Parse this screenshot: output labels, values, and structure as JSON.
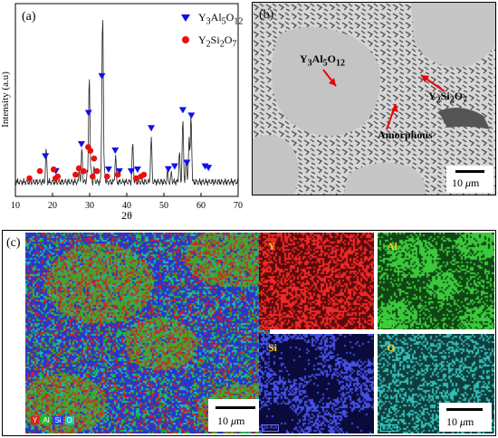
{
  "panel_a": {
    "label": "(a)",
    "legend": [
      {
        "name_html": "Y<sub>3</sub>Al<sub>5</sub>O<sub>12</sub>",
        "marker": "triangle",
        "color": "#1010ee"
      },
      {
        "name_html": "Y<sub>2</sub>Si<sub>2</sub>O<sub>7</sub>",
        "marker": "circle",
        "color": "#e81010"
      }
    ],
    "xlabel": "2θ",
    "ylabel": "Intensity (a.u)",
    "xticks": [
      "10",
      "20",
      "30",
      "40",
      "50",
      "60",
      "70"
    ]
  },
  "chart_data": {
    "type": "line",
    "title": "",
    "xlabel": "2θ",
    "ylabel": "Intensity (a.u)",
    "xlim": [
      10,
      70
    ],
    "ylim": [
      0,
      100
    ],
    "grid": false,
    "legend_position": "top-right",
    "series": [
      {
        "name": "",
        "x": [
          10,
          12,
          13.6,
          15,
          16.6,
          18,
          18.3,
          19,
          20.4,
          21,
          22,
          24,
          26,
          27.2,
          27.9,
          28.5,
          29.4,
          29.9,
          30.4,
          31.2,
          32,
          33.2,
          33.5,
          34,
          35,
          36.2,
          37,
          38,
          39,
          41,
          41.6,
          43,
          44,
          46,
          46.6,
          48,
          50,
          51,
          52,
          53,
          54.2,
          55.1,
          56,
          56.8,
          57.3,
          58,
          60,
          61,
          62,
          65,
          70
        ],
        "values": [
          4,
          4,
          6,
          5,
          8,
          6,
          24,
          6,
          9,
          7,
          5,
          5,
          7,
          12,
          24,
          9,
          12,
          64,
          13,
          14,
          9,
          18,
          98,
          12,
          8,
          9,
          20,
          6,
          7,
          10,
          27,
          8,
          7,
          8,
          30,
          8,
          7,
          12,
          11,
          10,
          22,
          40,
          18,
          30,
          42,
          8,
          6,
          10,
          8,
          5,
          4
        ]
      }
    ],
    "markers": {
      "Y3Al5O12_2theta": [
        18.1,
        20.9,
        27.8,
        29.7,
        33.3,
        35.1,
        36.9,
        38.0,
        41.2,
        42.9,
        46.6,
        51.2,
        52.9,
        55.1,
        56.2,
        57.4,
        61.1,
        62.0
      ],
      "Y2Si2O7_2theta": [
        13.8,
        16.6,
        20.3,
        20.8,
        21.4,
        26.2,
        27.1,
        28.4,
        29.6,
        30.2,
        30.8,
        31.2,
        32.0,
        34.7,
        37.6,
        42.5,
        43.8,
        44.6
      ]
    }
  },
  "panel_b": {
    "label": "(b)",
    "annotations": {
      "yag_html": "Y<sub>3</sub>Al<sub>5</sub>O<sub>12</sub>",
      "yso_html": "Y<sub>2</sub>Si<sub>2</sub>O<sub>7</sub>",
      "amorphous": "Amorphous"
    },
    "scalebar_html": "10 <i>μ</i>m"
  },
  "panel_c": {
    "label": "(c)",
    "overlay_keys": [
      {
        "text": "Y",
        "color": "#e02020"
      },
      {
        "text": "Al",
        "color": "#20c020"
      },
      {
        "text": "Si",
        "color": "#2040ff"
      },
      {
        "text": "O",
        "color": "#20c8c8"
      }
    ],
    "scalebar_html": "10 <i>μ</i>m",
    "maps": [
      {
        "element": "Y",
        "tag": "Y-L",
        "text_color": "#ffd21a",
        "tag_color": "#e83030"
      },
      {
        "element": "Al",
        "tag": "Al-K",
        "text_color": "#ffd21a",
        "tag_color": "#40e040"
      },
      {
        "element": "Si",
        "tag": "Si-KA",
        "text_color": "#ffd21a",
        "tag_color": "#7070ff"
      },
      {
        "element": "O",
        "tag": "O-KA",
        "text_color": "#ffd21a",
        "tag_color": "#30d0d0"
      }
    ],
    "maps_scalebar_html": "10 <i>μ</i>m"
  }
}
